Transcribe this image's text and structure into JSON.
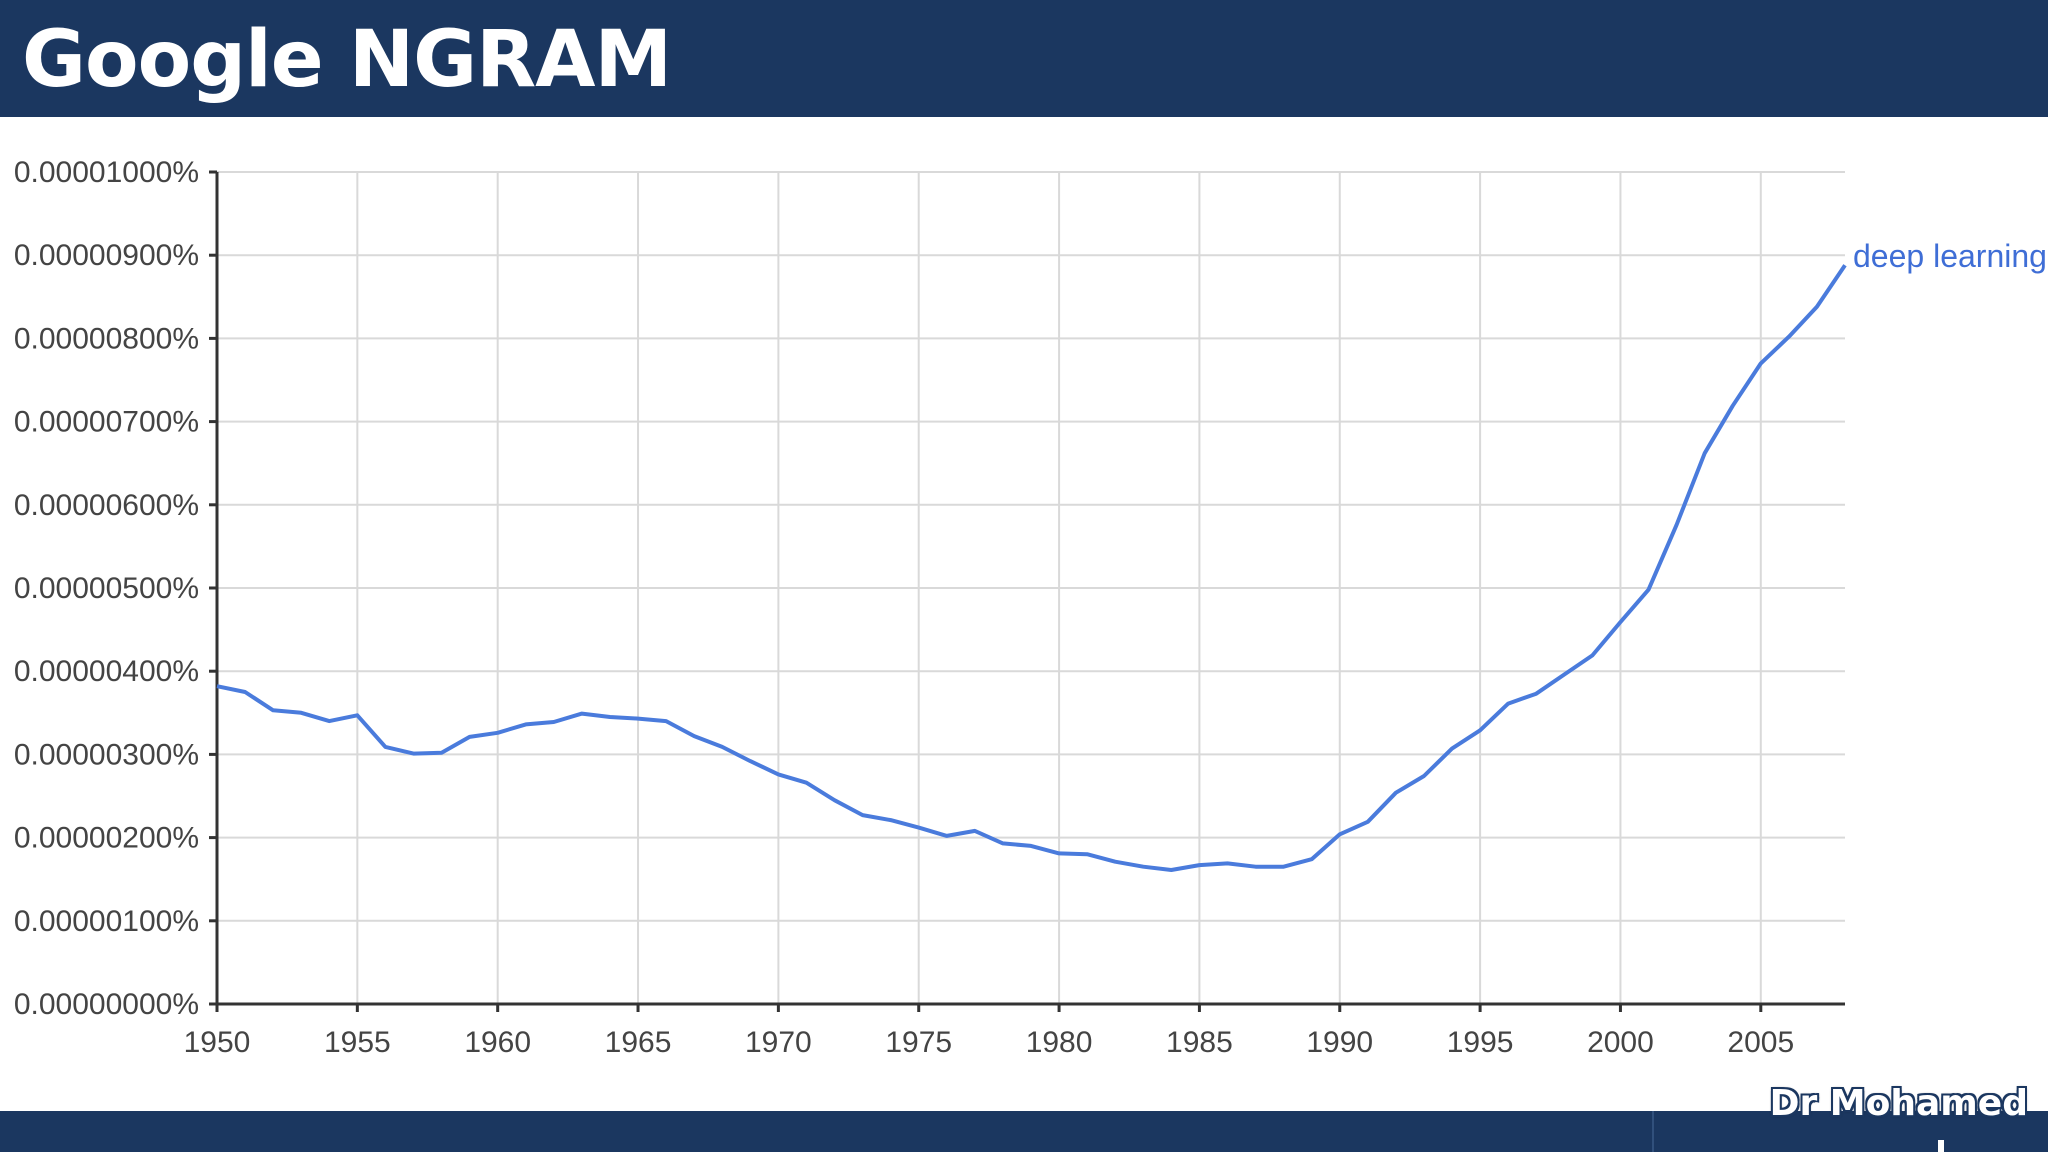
{
  "header": {
    "title": "Google NGRAM"
  },
  "footer": {
    "author": "Dr Mohamed"
  },
  "colors": {
    "header_bg": "#1b3760",
    "series": "#4a7bdc",
    "grid": "#d9d9d9"
  },
  "chart_data": {
    "type": "line",
    "x_label": "",
    "y_label": "",
    "xlim": [
      1950,
      2008
    ],
    "ylim": [
      0,
      1e-05
    ],
    "grid": true,
    "legend": "inline-end",
    "x_ticks": [
      "1950",
      "1955",
      "1960",
      "1965",
      "1970",
      "1975",
      "1980",
      "1985",
      "1990",
      "1995",
      "2000",
      "2005"
    ],
    "x_tick_values": [
      1950,
      1955,
      1960,
      1965,
      1970,
      1975,
      1980,
      1985,
      1990,
      1995,
      2000,
      2005
    ],
    "y_ticks": [
      "0.00000000%",
      "0.00000100%",
      "0.00000200%",
      "0.00000300%",
      "0.00000400%",
      "0.00000500%",
      "0.00000600%",
      "0.00000700%",
      "0.00000800%",
      "0.00000900%",
      "0.00001000%"
    ],
    "y_tick_values": [
      0,
      1e-06,
      2e-06,
      3e-06,
      4e-06,
      5e-06,
      6e-06,
      7e-06,
      8e-06,
      9e-06,
      1e-05
    ],
    "series": [
      {
        "name": "deep learning",
        "color": "#4a7bdc",
        "x": [
          1950,
          1951,
          1952,
          1953,
          1954,
          1955,
          1956,
          1957,
          1958,
          1959,
          1960,
          1961,
          1962,
          1963,
          1964,
          1965,
          1966,
          1967,
          1968,
          1969,
          1970,
          1971,
          1972,
          1973,
          1974,
          1975,
          1976,
          1977,
          1978,
          1979,
          1980,
          1981,
          1982,
          1983,
          1984,
          1985,
          1986,
          1987,
          1988,
          1989,
          1990,
          1991,
          1992,
          1993,
          1994,
          1995,
          1996,
          1997,
          1998,
          1999,
          2000,
          2001,
          2002,
          2003,
          2004,
          2005,
          2006,
          2007,
          2008
        ],
        "y": [
          3.82e-06,
          3.75e-06,
          3.53e-06,
          3.5e-06,
          3.4e-06,
          3.47e-06,
          3.09e-06,
          3.01e-06,
          3.02e-06,
          3.21e-06,
          3.26e-06,
          3.36e-06,
          3.39e-06,
          3.49e-06,
          3.45e-06,
          3.43e-06,
          3.4e-06,
          3.22e-06,
          3.09e-06,
          2.92e-06,
          2.76e-06,
          2.66e-06,
          2.45e-06,
          2.27e-06,
          2.21e-06,
          2.12e-06,
          2.02e-06,
          2.08e-06,
          1.93e-06,
          1.9e-06,
          1.81e-06,
          1.8e-06,
          1.71e-06,
          1.65e-06,
          1.61e-06,
          1.67e-06,
          1.69e-06,
          1.65e-06,
          1.65e-06,
          1.74e-06,
          2.04e-06,
          2.19e-06,
          2.54e-06,
          2.74e-06,
          3.07e-06,
          3.29e-06,
          3.61e-06,
          3.73e-06,
          3.96e-06,
          4.19e-06,
          4.59e-06,
          4.98e-06,
          5.76e-06,
          6.62e-06,
          7.19e-06,
          7.7e-06,
          8.02e-06,
          8.38e-06,
          8.88e-06
        ]
      }
    ]
  }
}
